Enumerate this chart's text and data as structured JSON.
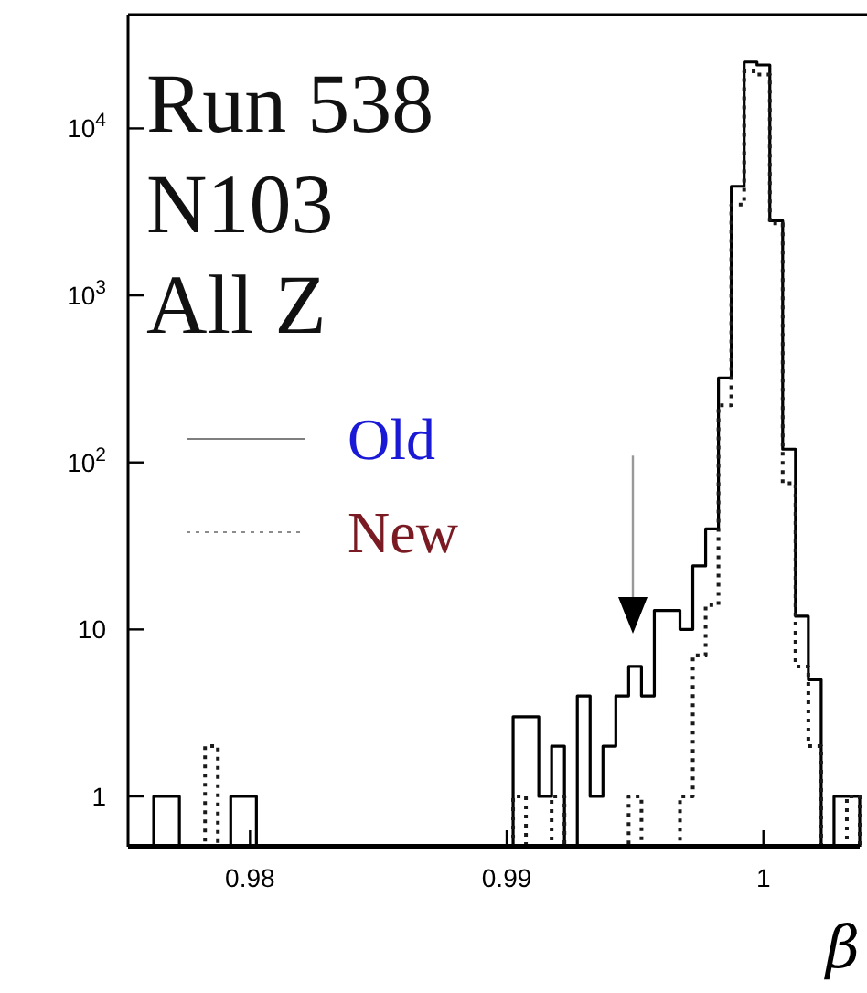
{
  "chart_data": {
    "type": "histogram",
    "annotations": [
      "Run 538",
      "N103",
      "All Z"
    ],
    "xlabel": "β",
    "bins": [
      0.97525,
      0.97575,
      0.97625,
      0.97675,
      0.97725,
      0.97775,
      0.97825,
      0.97875,
      0.97925,
      0.97975,
      0.98025,
      0.98075,
      0.98125,
      0.98175,
      0.98225,
      0.98275,
      0.98325,
      0.98375,
      0.98425,
      0.98475,
      0.98525,
      0.98575,
      0.98625,
      0.98675,
      0.98725,
      0.98775,
      0.98825,
      0.98875,
      0.98925,
      0.98975,
      0.99025,
      0.99075,
      0.99125,
      0.99175,
      0.99225,
      0.99275,
      0.99325,
      0.99375,
      0.99425,
      0.99475,
      0.99525,
      0.99575,
      0.99625,
      0.99675,
      0.99725,
      0.99775,
      0.99825,
      0.99875,
      0.99925,
      0.99975,
      1.00025,
      1.00075,
      1.00125,
      1.00175,
      1.00225,
      1.00275,
      1.00325,
      1.00375
    ],
    "series": [
      {
        "name": "Old",
        "color": "#000000",
        "line_style": "solid",
        "values": [
          null,
          null,
          1,
          1,
          null,
          null,
          null,
          null,
          1,
          1,
          null,
          null,
          null,
          null,
          null,
          null,
          null,
          null,
          null,
          null,
          null,
          null,
          null,
          null,
          null,
          null,
          null,
          null,
          null,
          null,
          3,
          3,
          1,
          2,
          null,
          4,
          1,
          2,
          4,
          6,
          4,
          13,
          13,
          10,
          24,
          40,
          320,
          4500,
          25000,
          24000,
          2800,
          120,
          12,
          5,
          null,
          1,
          1
        ]
      },
      {
        "name": "New",
        "color": "#1a1a1a",
        "line_style": "dotted",
        "values": [
          null,
          null,
          null,
          null,
          null,
          null,
          2,
          null,
          null,
          null,
          null,
          null,
          null,
          null,
          null,
          null,
          null,
          null,
          null,
          null,
          null,
          null,
          null,
          null,
          null,
          null,
          null,
          null,
          null,
          null,
          1,
          null,
          null,
          1,
          null,
          null,
          null,
          null,
          null,
          1,
          null,
          null,
          null,
          1,
          7,
          14,
          220,
          3500,
          22000,
          21000,
          2700,
          75,
          6,
          2,
          null,
          null,
          1
        ]
      }
    ],
    "log": "y",
    "xlim": [
      0.97525,
      1.00375
    ],
    "ylim": [
      0.5,
      48000
    ],
    "xticks": [
      0.98,
      0.99,
      1
    ],
    "yticks": [
      1,
      10,
      {
        "value": 100,
        "label": "10$^{2}$"
      },
      {
        "value": 1000,
        "label": "10$^{3}$"
      },
      {
        "value": 10000,
        "label": "10$^{4}$"
      }
    ],
    "legend": "left",
    "grid": false
  }
}
